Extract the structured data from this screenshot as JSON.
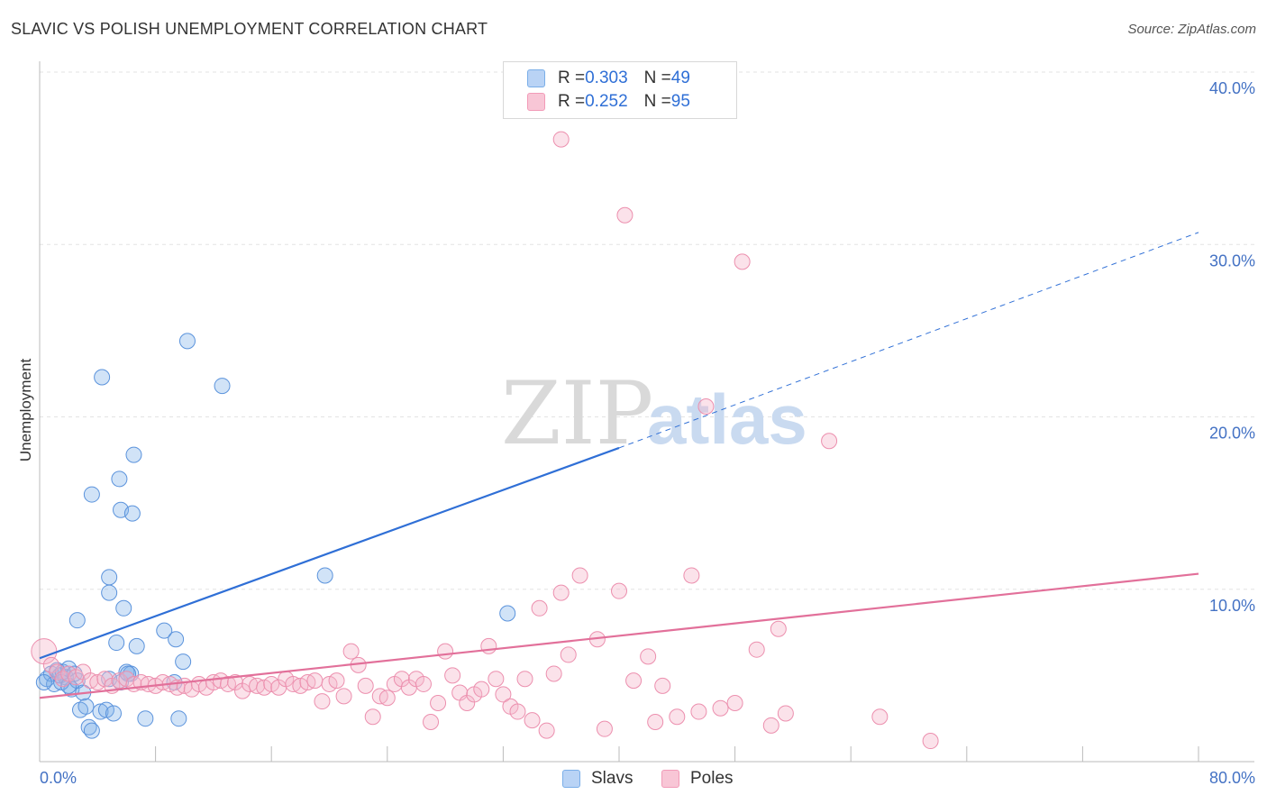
{
  "title": "SLAVIC VS POLISH UNEMPLOYMENT CORRELATION CHART",
  "source": "Source: ZipAtlas.com",
  "watermark": {
    "part1": "ZIP",
    "part2": "atlas"
  },
  "legend": {
    "rows": [
      {
        "series": "Slavs",
        "r_label": "R = ",
        "r_value": "0.303",
        "n_label": "N = ",
        "n_value": "49",
        "color": "#7aaee8"
      },
      {
        "series": "Poles",
        "r_label": "R = ",
        "r_value": "0.252",
        "n_label": "N = ",
        "n_value": "95",
        "color": "#f29bb8"
      }
    ]
  },
  "bottom_legend": [
    {
      "label": "Slavs",
      "color": "#7aaee8"
    },
    {
      "label": "Poles",
      "color": "#f29bb8"
    }
  ],
  "chart_data": {
    "type": "scatter",
    "title": "SLAVIC VS POLISH UNEMPLOYMENT CORRELATION CHART",
    "xlabel": "",
    "ylabel": "Unemployment",
    "xlim": [
      0,
      80
    ],
    "ylim": [
      0,
      40
    ],
    "x_tick_labels": [
      "0.0%",
      "80.0%"
    ],
    "y_tick_labels": [
      "10.0%",
      "20.0%",
      "30.0%",
      "40.0%"
    ],
    "y_ticks": [
      10,
      20,
      30,
      40
    ],
    "x_minor_ticks": [
      0,
      8,
      16,
      24,
      32,
      40,
      48,
      56,
      64,
      72,
      80
    ],
    "grid": true,
    "series": [
      {
        "name": "Slavs",
        "color": "#7aaee8",
        "stroke": "#5b93dc",
        "trend": {
          "x0": 0,
          "y0": 6.0,
          "x1": 40,
          "y1": 18.2,
          "dash_to_x": 80,
          "dash_to_y": 30.7,
          "color": "#2f6fd6"
        },
        "points": [
          [
            0.5,
            4.8
          ],
          [
            0.8,
            5.1
          ],
          [
            1.0,
            4.5
          ],
          [
            1.2,
            5.3
          ],
          [
            1.4,
            5.0
          ],
          [
            1.6,
            5.2
          ],
          [
            1.8,
            4.9
          ],
          [
            2.0,
            5.4
          ],
          [
            2.2,
            4.2
          ],
          [
            2.4,
            5.1
          ],
          [
            2.6,
            4.7
          ],
          [
            2.8,
            3.0
          ],
          [
            3.0,
            4.0
          ],
          [
            3.2,
            3.2
          ],
          [
            3.4,
            2.0
          ],
          [
            3.6,
            1.8
          ],
          [
            2.6,
            8.2
          ],
          [
            3.6,
            15.5
          ],
          [
            4.2,
            2.9
          ],
          [
            4.6,
            3.0
          ],
          [
            4.8,
            4.8
          ],
          [
            5.1,
            2.8
          ],
          [
            5.6,
            4.6
          ],
          [
            4.3,
            22.3
          ],
          [
            4.8,
            10.7
          ],
          [
            4.8,
            9.8
          ],
          [
            5.3,
            6.9
          ],
          [
            5.5,
            16.4
          ],
          [
            5.6,
            14.6
          ],
          [
            5.8,
            8.9
          ],
          [
            6.0,
            5.2
          ],
          [
            6.3,
            5.1
          ],
          [
            6.4,
            14.4
          ],
          [
            6.5,
            17.8
          ],
          [
            6.7,
            6.7
          ],
          [
            7.3,
            2.5
          ],
          [
            8.6,
            7.6
          ],
          [
            9.4,
            7.1
          ],
          [
            9.6,
            2.5
          ],
          [
            9.9,
            5.8
          ],
          [
            10.2,
            24.4
          ],
          [
            12.6,
            21.8
          ],
          [
            9.3,
            4.6
          ],
          [
            19.7,
            10.8
          ],
          [
            32.3,
            8.6
          ],
          [
            1.5,
            4.6
          ],
          [
            2.0,
            4.4
          ],
          [
            6.1,
            5.1
          ],
          [
            0.3,
            4.6
          ]
        ]
      },
      {
        "name": "Poles",
        "color": "#f5b6cb",
        "stroke": "#ec8fae",
        "trend": {
          "x0": 0,
          "y0": 3.7,
          "x1": 80,
          "y1": 10.9,
          "color": "#e2709a"
        },
        "points": [
          [
            0.3,
            6.4
          ],
          [
            0.8,
            5.6
          ],
          [
            1.2,
            5.2
          ],
          [
            1.6,
            4.8
          ],
          [
            2.0,
            5.1
          ],
          [
            2.5,
            4.9
          ],
          [
            3.0,
            5.2
          ],
          [
            3.5,
            4.7
          ],
          [
            4.0,
            4.6
          ],
          [
            4.5,
            4.8
          ],
          [
            5.0,
            4.4
          ],
          [
            5.5,
            4.7
          ],
          [
            6.0,
            4.8
          ],
          [
            6.5,
            4.5
          ],
          [
            7.0,
            4.6
          ],
          [
            7.5,
            4.5
          ],
          [
            8.0,
            4.4
          ],
          [
            8.5,
            4.6
          ],
          [
            9.0,
            4.5
          ],
          [
            9.5,
            4.3
          ],
          [
            10.0,
            4.4
          ],
          [
            10.5,
            4.2
          ],
          [
            11.0,
            4.5
          ],
          [
            11.5,
            4.3
          ],
          [
            12.0,
            4.6
          ],
          [
            12.5,
            4.7
          ],
          [
            13.0,
            4.5
          ],
          [
            13.5,
            4.6
          ],
          [
            14.0,
            4.1
          ],
          [
            14.5,
            4.5
          ],
          [
            15.0,
            4.4
          ],
          [
            15.5,
            4.3
          ],
          [
            16.0,
            4.5
          ],
          [
            16.5,
            4.3
          ],
          [
            17.0,
            4.8
          ],
          [
            17.5,
            4.5
          ],
          [
            18.0,
            4.4
          ],
          [
            18.5,
            4.6
          ],
          [
            19.0,
            4.7
          ],
          [
            19.5,
            3.5
          ],
          [
            20.0,
            4.5
          ],
          [
            20.5,
            4.7
          ],
          [
            21.0,
            3.8
          ],
          [
            21.5,
            6.4
          ],
          [
            22.0,
            5.6
          ],
          [
            22.5,
            4.4
          ],
          [
            23.0,
            2.6
          ],
          [
            23.5,
            3.8
          ],
          [
            24.0,
            3.7
          ],
          [
            24.5,
            4.5
          ],
          [
            25.0,
            4.8
          ],
          [
            25.5,
            4.3
          ],
          [
            26.0,
            4.8
          ],
          [
            26.5,
            4.5
          ],
          [
            27.0,
            2.3
          ],
          [
            27.5,
            3.4
          ],
          [
            28.0,
            6.4
          ],
          [
            28.5,
            5.0
          ],
          [
            29.0,
            4.0
          ],
          [
            29.5,
            3.4
          ],
          [
            30.0,
            3.9
          ],
          [
            30.5,
            4.2
          ],
          [
            31.0,
            6.7
          ],
          [
            31.5,
            4.8
          ],
          [
            32.0,
            3.9
          ],
          [
            32.5,
            3.2
          ],
          [
            33.0,
            2.9
          ],
          [
            33.5,
            4.8
          ],
          [
            34.0,
            2.4
          ],
          [
            34.5,
            8.9
          ],
          [
            35.0,
            1.8
          ],
          [
            35.5,
            5.1
          ],
          [
            36.0,
            9.8
          ],
          [
            36.5,
            6.2
          ],
          [
            37.3,
            10.8
          ],
          [
            38.5,
            7.1
          ],
          [
            39.0,
            1.9
          ],
          [
            40.0,
            9.9
          ],
          [
            41.0,
            4.7
          ],
          [
            42.0,
            6.1
          ],
          [
            42.5,
            2.3
          ],
          [
            43.0,
            4.4
          ],
          [
            44.0,
            2.6
          ],
          [
            45.0,
            10.8
          ],
          [
            45.5,
            2.9
          ],
          [
            47.0,
            3.1
          ],
          [
            48.0,
            3.4
          ],
          [
            49.5,
            6.5
          ],
          [
            50.5,
            2.1
          ],
          [
            51.5,
            2.8
          ],
          [
            51.0,
            7.7
          ],
          [
            58.0,
            2.6
          ],
          [
            61.5,
            1.2
          ],
          [
            36.0,
            36.1
          ],
          [
            40.4,
            31.7
          ]
        ],
        "extra_points": [
          [
            46.0,
            20.6
          ],
          [
            54.5,
            18.6
          ],
          [
            48.5,
            29.0
          ]
        ]
      }
    ]
  }
}
